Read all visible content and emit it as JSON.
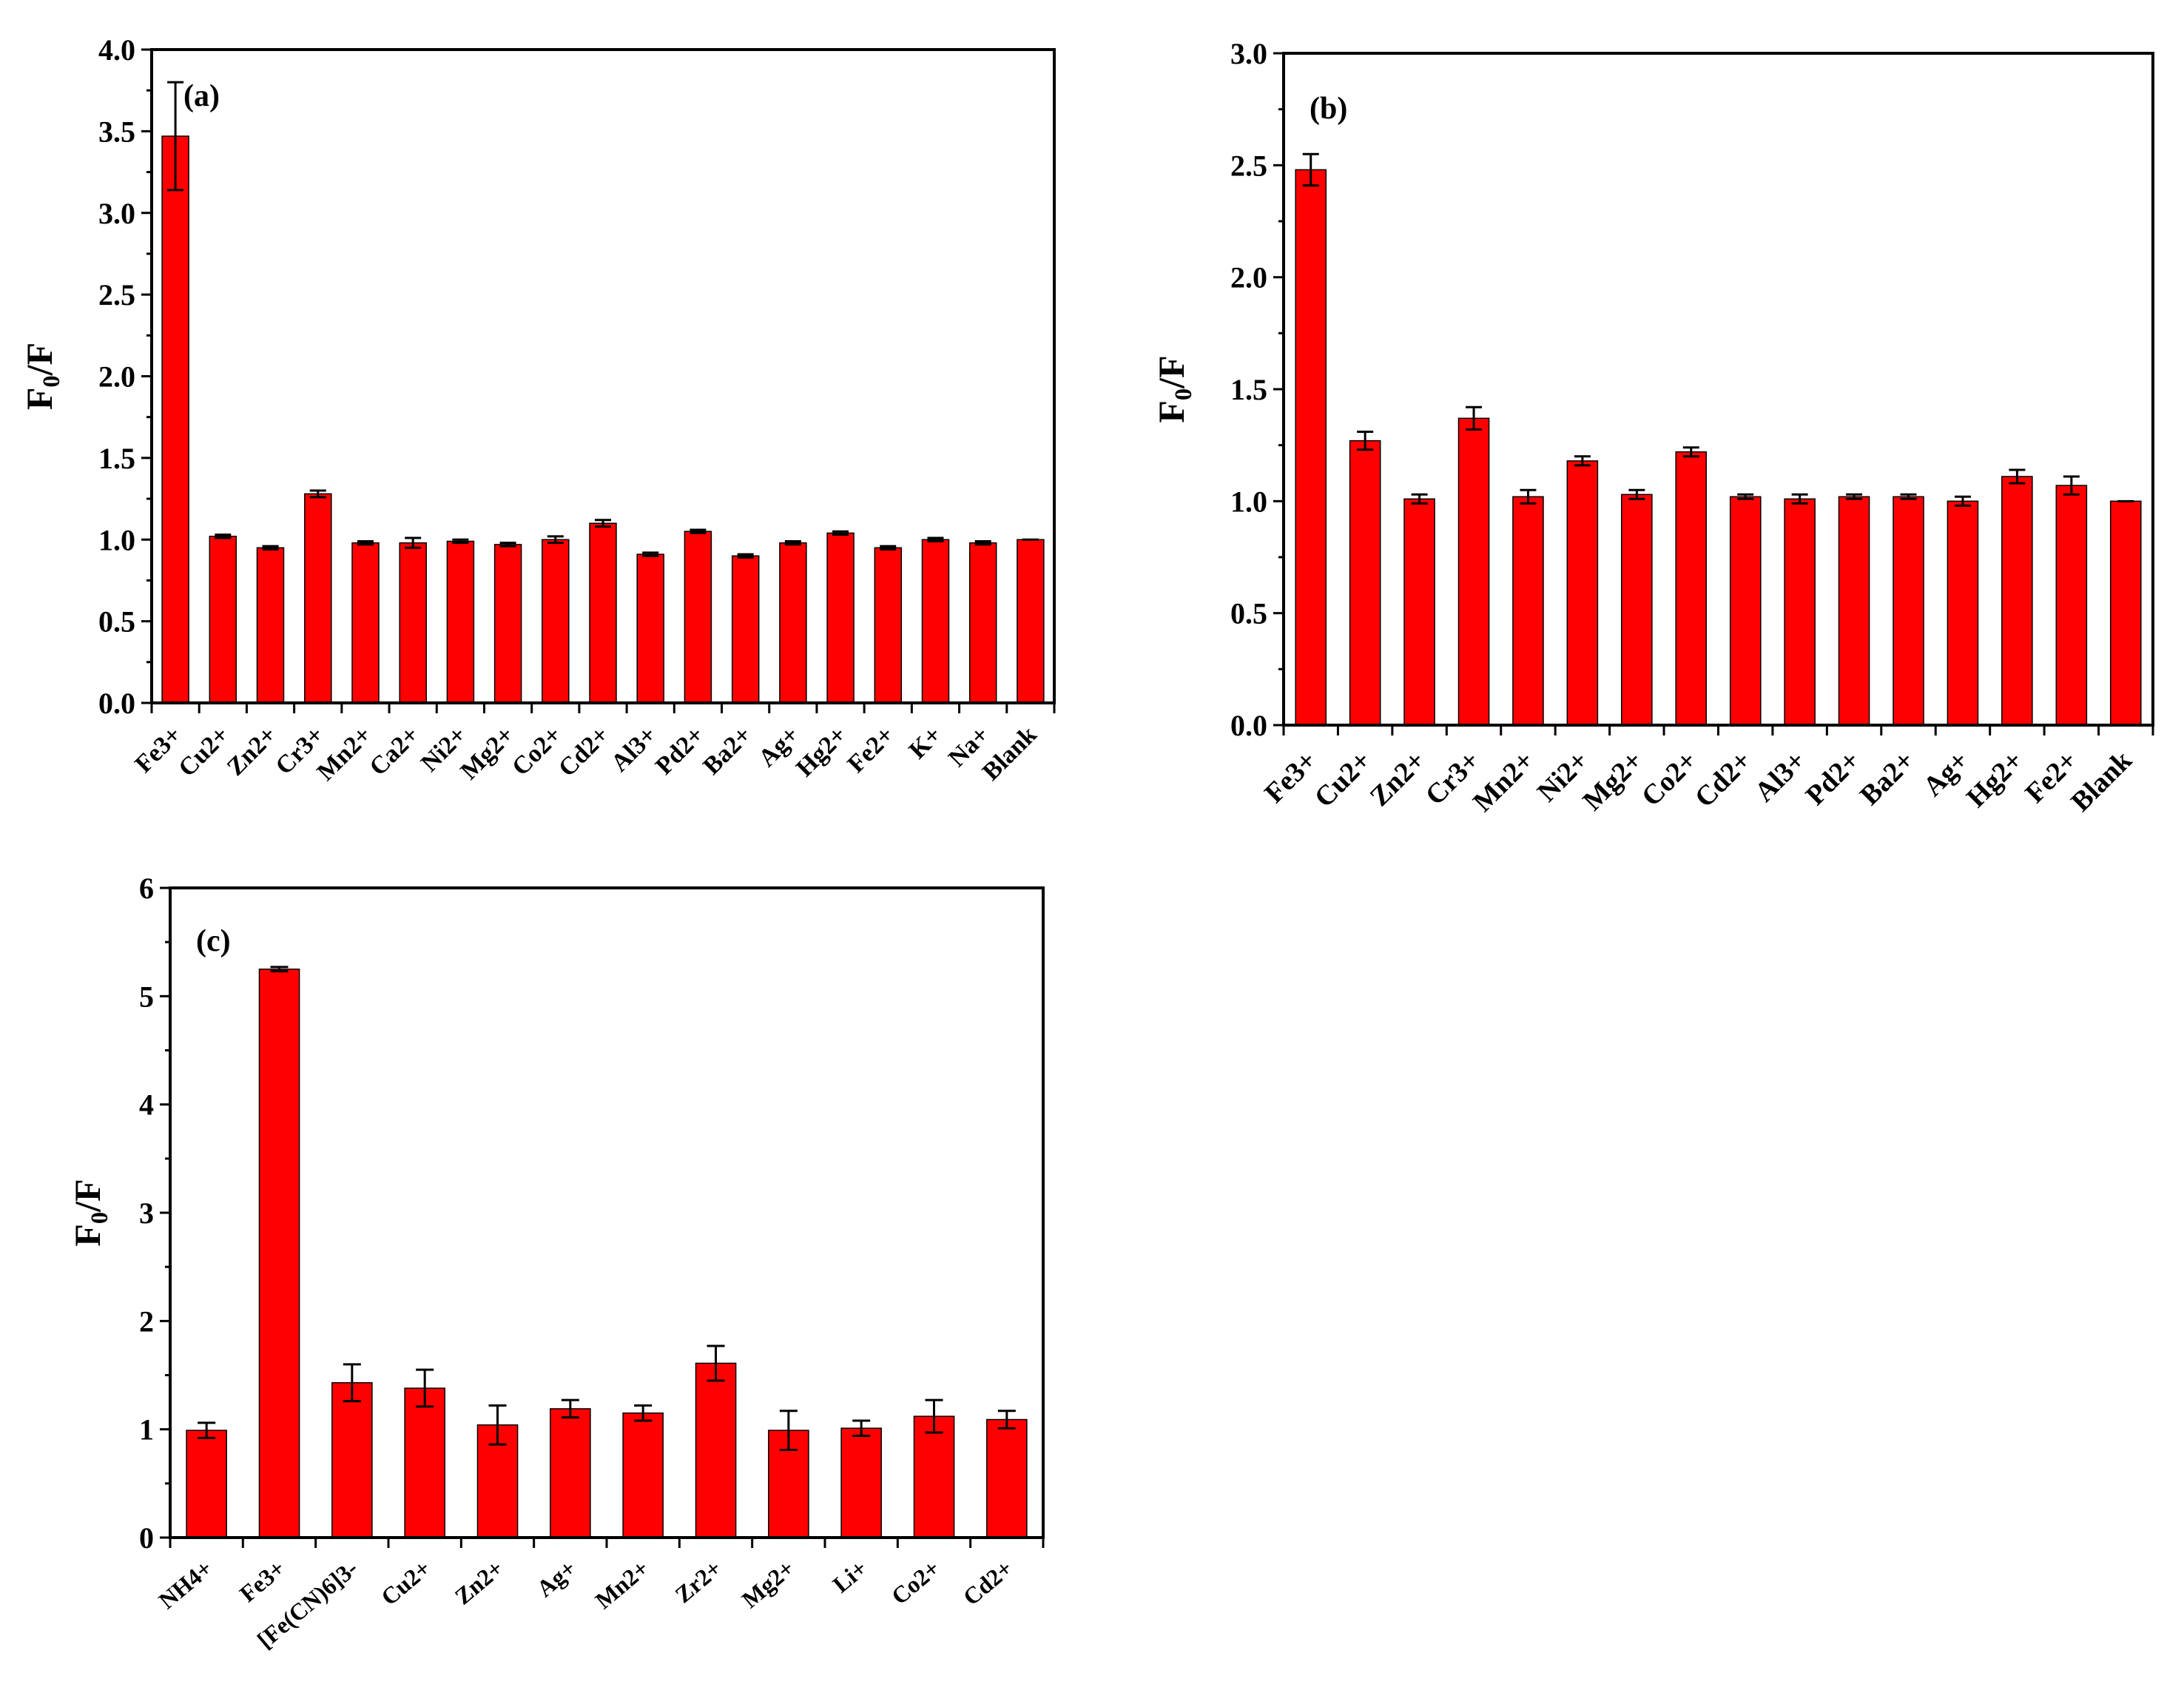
{
  "style": {
    "bar_color": "#ff0000",
    "axis_color": "#000000",
    "background": "#ffffff"
  },
  "chart_data": [
    {
      "type": "bar",
      "panel_label": "(a)",
      "ylabel": "F0/F",
      "ylabel_main": "F",
      "ylabel_sub": "0",
      "ylabel_tail": "/F",
      "ylim": [
        0,
        4.0
      ],
      "yticks": [
        0.0,
        0.5,
        1.0,
        1.5,
        2.0,
        2.5,
        3.0,
        3.5,
        4.0
      ],
      "ytick_labels": [
        "0.0",
        "0.5",
        "1.0",
        "1.5",
        "2.0",
        "2.5",
        "3.0",
        "3.5",
        "4.0"
      ],
      "grid": false,
      "legend": "none",
      "categories": [
        "Fe3+",
        "Cu2+",
        "Zn2+",
        "Cr3+",
        "Mn2+",
        "Ca2+",
        "Ni2+",
        "Mg2+",
        "Co2+",
        "Cd2+",
        "Al3+",
        "Pd2+",
        "Ba2+",
        "Ag+",
        "Hg2+",
        "Fe2+",
        "K+",
        "Na+",
        "Blank"
      ],
      "values": [
        3.47,
        1.02,
        0.95,
        1.28,
        0.98,
        0.98,
        0.99,
        0.97,
        1.0,
        1.1,
        0.91,
        1.05,
        0.9,
        0.98,
        1.04,
        0.95,
        1.0,
        0.98,
        1.0
      ],
      "errors": [
        0.33,
        0.01,
        0.01,
        0.02,
        0.01,
        0.03,
        0.01,
        0.01,
        0.02,
        0.02,
        0.01,
        0.01,
        0.01,
        0.01,
        0.01,
        0.01,
        0.01,
        0.01,
        0.0
      ]
    },
    {
      "type": "bar",
      "panel_label": "(b)",
      "ylabel": "F0/F",
      "ylabel_main": "F",
      "ylabel_sub": "0",
      "ylabel_tail": "/F",
      "ylim": [
        0,
        3.0
      ],
      "yticks": [
        0.0,
        0.5,
        1.0,
        1.5,
        2.0,
        2.5,
        3.0
      ],
      "ytick_labels": [
        "0.0",
        "0.5",
        "1.0",
        "1.5",
        "2.0",
        "2.5",
        "3.0"
      ],
      "grid": false,
      "legend": "none",
      "categories": [
        "Fe3+",
        "Cu2+",
        "Zn2+",
        "Cr3+",
        "Mn2+",
        "Ni2+",
        "Mg2+",
        "Co2+",
        "Cd2+",
        "Al3+",
        "Pd2+",
        "Ba2+",
        "Ag+",
        "Hg2+",
        "Fe2+",
        "Blank"
      ],
      "values": [
        2.48,
        1.27,
        1.01,
        1.37,
        1.02,
        1.18,
        1.03,
        1.22,
        1.02,
        1.01,
        1.02,
        1.02,
        1.0,
        1.11,
        1.07,
        1.0
      ],
      "errors": [
        0.07,
        0.04,
        0.02,
        0.05,
        0.03,
        0.02,
        0.02,
        0.02,
        0.01,
        0.02,
        0.01,
        0.01,
        0.02,
        0.03,
        0.04,
        0.0
      ]
    },
    {
      "type": "bar",
      "panel_label": "(c)",
      "ylabel": "F0/F",
      "ylabel_main": "F",
      "ylabel_sub": "0",
      "ylabel_tail": "/F",
      "ylim": [
        0,
        6
      ],
      "yticks": [
        0,
        1,
        2,
        3,
        4,
        5,
        6
      ],
      "ytick_labels": [
        "0",
        "1",
        "2",
        "3",
        "4",
        "5",
        "6"
      ],
      "grid": false,
      "legend": "none",
      "categories": [
        "NH4+",
        "Fe3+",
        "[Fe(CN)6]3-",
        "Cu2+",
        "Zn2+",
        "Ag+",
        "Mn2+",
        "Zr2+",
        "Mg2+",
        "Li+",
        "Co2+",
        "Cd2+"
      ],
      "values": [
        0.99,
        5.25,
        1.43,
        1.38,
        1.04,
        1.19,
        1.15,
        1.61,
        0.99,
        1.01,
        1.12,
        1.09
      ],
      "errors": [
        0.07,
        0.02,
        0.17,
        0.17,
        0.18,
        0.08,
        0.07,
        0.16,
        0.18,
        0.07,
        0.15,
        0.08
      ]
    }
  ]
}
